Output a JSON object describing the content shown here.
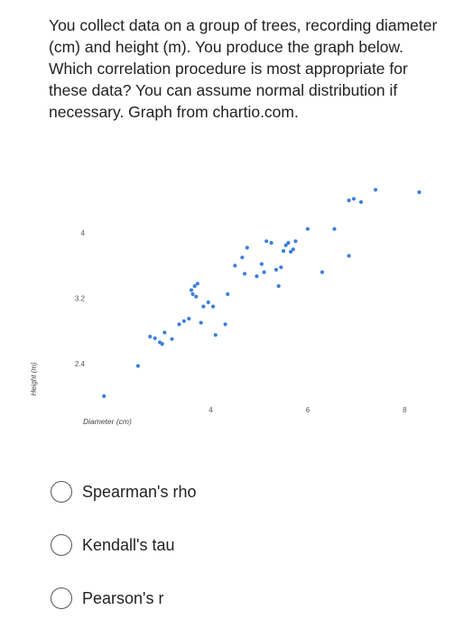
{
  "question": {
    "text": "You collect data on a group of trees, recording diameter (cm) and height (m). You produce the graph below. Which correlation procedure is most appropriate for these data? You can assume normal distribution if necessary. Graph from chartio.com."
  },
  "chart_data": {
    "type": "scatter",
    "xlabel": "Diameter (cm)",
    "ylabel": "Height (m)",
    "xlim": [
      1.2,
      8.7
    ],
    "ylim": [
      1.9,
      4.6
    ],
    "x_ticks": [
      4,
      6,
      8
    ],
    "y_ticks": [
      2.4,
      3.2,
      4
    ],
    "x_tick_labels": [
      "4",
      "6",
      "8"
    ],
    "y_tick_labels": [
      "2.4",
      "3.2",
      "4"
    ],
    "grid": false,
    "color": "#3d7fd9",
    "points": [
      {
        "x": 1.8,
        "y": 2.0
      },
      {
        "x": 2.5,
        "y": 2.37
      },
      {
        "x": 2.75,
        "y": 2.73
      },
      {
        "x": 2.85,
        "y": 2.71
      },
      {
        "x": 2.95,
        "y": 2.66
      },
      {
        "x": 3.0,
        "y": 2.64
      },
      {
        "x": 3.05,
        "y": 2.78
      },
      {
        "x": 3.2,
        "y": 2.7
      },
      {
        "x": 3.35,
        "y": 2.88
      },
      {
        "x": 3.45,
        "y": 2.92
      },
      {
        "x": 3.55,
        "y": 2.95
      },
      {
        "x": 3.6,
        "y": 3.3
      },
      {
        "x": 3.63,
        "y": 3.25
      },
      {
        "x": 3.67,
        "y": 3.35
      },
      {
        "x": 3.7,
        "y": 3.22
      },
      {
        "x": 3.73,
        "y": 3.38
      },
      {
        "x": 3.8,
        "y": 2.9
      },
      {
        "x": 3.85,
        "y": 3.1
      },
      {
        "x": 3.95,
        "y": 3.15
      },
      {
        "x": 4.05,
        "y": 3.1
      },
      {
        "x": 4.1,
        "y": 2.75
      },
      {
        "x": 4.3,
        "y": 2.88
      },
      {
        "x": 4.35,
        "y": 3.25
      },
      {
        "x": 4.5,
        "y": 3.6
      },
      {
        "x": 4.65,
        "y": 3.7
      },
      {
        "x": 4.7,
        "y": 3.5
      },
      {
        "x": 4.75,
        "y": 3.82
      },
      {
        "x": 4.95,
        "y": 3.47
      },
      {
        "x": 5.05,
        "y": 3.62
      },
      {
        "x": 5.1,
        "y": 3.52
      },
      {
        "x": 5.15,
        "y": 3.9
      },
      {
        "x": 5.25,
        "y": 3.88
      },
      {
        "x": 5.35,
        "y": 3.55
      },
      {
        "x": 5.4,
        "y": 3.35
      },
      {
        "x": 5.45,
        "y": 3.58
      },
      {
        "x": 5.5,
        "y": 3.78
      },
      {
        "x": 5.55,
        "y": 3.85
      },
      {
        "x": 5.6,
        "y": 3.88
      },
      {
        "x": 5.65,
        "y": 3.77
      },
      {
        "x": 5.7,
        "y": 3.8
      },
      {
        "x": 5.75,
        "y": 3.9
      },
      {
        "x": 6.0,
        "y": 4.05
      },
      {
        "x": 6.3,
        "y": 3.52
      },
      {
        "x": 6.55,
        "y": 4.05
      },
      {
        "x": 6.85,
        "y": 3.72
      },
      {
        "x": 6.85,
        "y": 4.4
      },
      {
        "x": 6.95,
        "y": 4.42
      },
      {
        "x": 7.1,
        "y": 4.38
      },
      {
        "x": 7.4,
        "y": 4.53
      },
      {
        "x": 8.3,
        "y": 4.5
      }
    ]
  },
  "choices": [
    {
      "label": "Spearman's rho"
    },
    {
      "label": "Kendall's tau"
    },
    {
      "label": "Pearson's r"
    }
  ]
}
